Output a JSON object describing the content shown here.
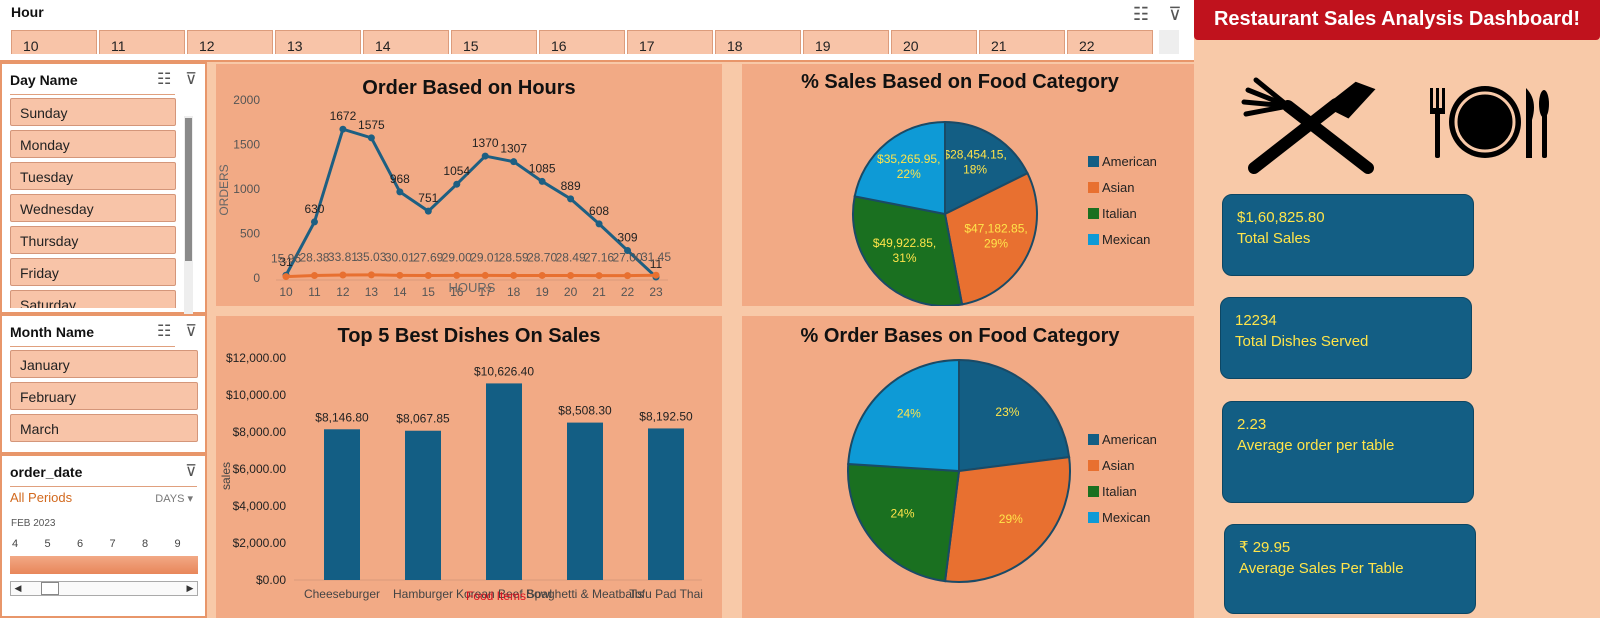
{
  "hour_slicer": {
    "title": "Hour",
    "buttons": [
      "10",
      "11",
      "12",
      "13",
      "14",
      "15",
      "16",
      "17",
      "18",
      "19",
      "20",
      "21",
      "22"
    ]
  },
  "day_slicer": {
    "title": "Day Name",
    "items": [
      "Sunday",
      "Monday",
      "Tuesday",
      "Wednesday",
      "Thursday",
      "Friday",
      "Saturday"
    ]
  },
  "month_slicer": {
    "title": "Month Name",
    "items": [
      "January",
      "February",
      "March"
    ]
  },
  "date_slicer": {
    "title": "order_date",
    "periods": "All Periods",
    "level": "DAYS",
    "month_label": "FEB 2023",
    "days": [
      "4",
      "5",
      "6",
      "7",
      "8",
      "9"
    ]
  },
  "header": {
    "title": "Restaurant Sales Analysis Dashboard!"
  },
  "kpis": {
    "total_sales_value": "$1,60,825.80",
    "total_sales_label": "Total  Sales",
    "dishes_value": "12234",
    "dishes_label": "Total Dishes Served",
    "avg_order_value": "2.23",
    "avg_order_label": "Average order per table",
    "avg_sales_value": "₹ 29.95",
    "avg_sales_label": "Average  Sales Per Table"
  },
  "icons": {
    "cutlery": "crossed-fork-knife-icon",
    "plate": "plate-fork-knife-icon"
  },
  "colors": {
    "navy": "#135e84",
    "orange": "#e87030",
    "green": "#1a7020",
    "blue": "#0e9ad6",
    "panel": "#f2aa85",
    "header_red": "#c0121d"
  },
  "chart_data": [
    {
      "type": "line",
      "title": "Order Based on Hours",
      "xlabel": "HOURS",
      "ylabel": "ORDERS",
      "x": [
        "10",
        "11",
        "12",
        "13",
        "14",
        "15",
        "16",
        "17",
        "18",
        "19",
        "20",
        "21",
        "22",
        "23"
      ],
      "ylim": [
        0,
        2000
      ],
      "yticks": [
        0,
        500,
        1000,
        1500,
        2000
      ],
      "series": [
        {
          "values": [
            31,
            630,
            1672,
            1575,
            968,
            751,
            1054,
            1370,
            1307,
            1085,
            889,
            608,
            309,
            11
          ],
          "labels": [
            "31",
            "630",
            "1672",
            "1575",
            "968",
            "751",
            "1054",
            "1370",
            "1307",
            "1085",
            "889",
            "608",
            "309",
            "11"
          ]
        },
        {
          "values": [
            15.96,
            28.38,
            33.81,
            35.03,
            30.01,
            27.69,
            29.0,
            29.01,
            28.59,
            28.7,
            28.49,
            27.16,
            27.0,
            31.45
          ],
          "labels": [
            "15.96",
            "28.38",
            "33.81",
            "35.03",
            "30.01",
            "27.69",
            "29.00",
            "29.01",
            "28.59",
            "28.70",
            "28.49",
            "27.16",
            "27.00",
            "31.45"
          ]
        }
      ]
    },
    {
      "type": "pie",
      "title": "% Sales Based on Food Category",
      "categories": [
        "American",
        "Asian",
        "Italian",
        "Mexican"
      ],
      "values": [
        28454.15,
        47182.85,
        49922.85,
        35265.95
      ],
      "labels": [
        "$28,454.15,\n18%",
        "$47,182.85,\n29%",
        "$49,922.85,\n31%",
        "$35,265.95,\n22%"
      ],
      "legend": "right"
    },
    {
      "type": "bar",
      "title": "Top 5 Best Dishes On Sales",
      "xlabel": "Food Items",
      "ylabel": "sales",
      "categories": [
        "Cheeseburger",
        "Hamburger",
        "Korean Beef Bowl",
        "Spaghetti & Meatballs",
        "Tofu Pad Thai"
      ],
      "values": [
        8146.8,
        8067.85,
        10626.4,
        8508.3,
        8192.5
      ],
      "labels": [
        "$8,146.80",
        "$8,067.85",
        "$10,626.40",
        "$8,508.30",
        "$8,192.50"
      ],
      "ylim": [
        0,
        12000
      ],
      "ytick_labels": [
        "$0.00",
        "$2,000.00",
        "$4,000.00",
        "$6,000.00",
        "$8,000.00",
        "$10,000.00",
        "$12,000.00"
      ]
    },
    {
      "type": "pie",
      "title": "% Order Bases on Food Category",
      "categories": [
        "American",
        "Asian",
        "Italian",
        "Mexican"
      ],
      "values": [
        23,
        29,
        24,
        24
      ],
      "labels": [
        "23%",
        "29%",
        "24%",
        "24%"
      ],
      "legend": "right"
    }
  ]
}
